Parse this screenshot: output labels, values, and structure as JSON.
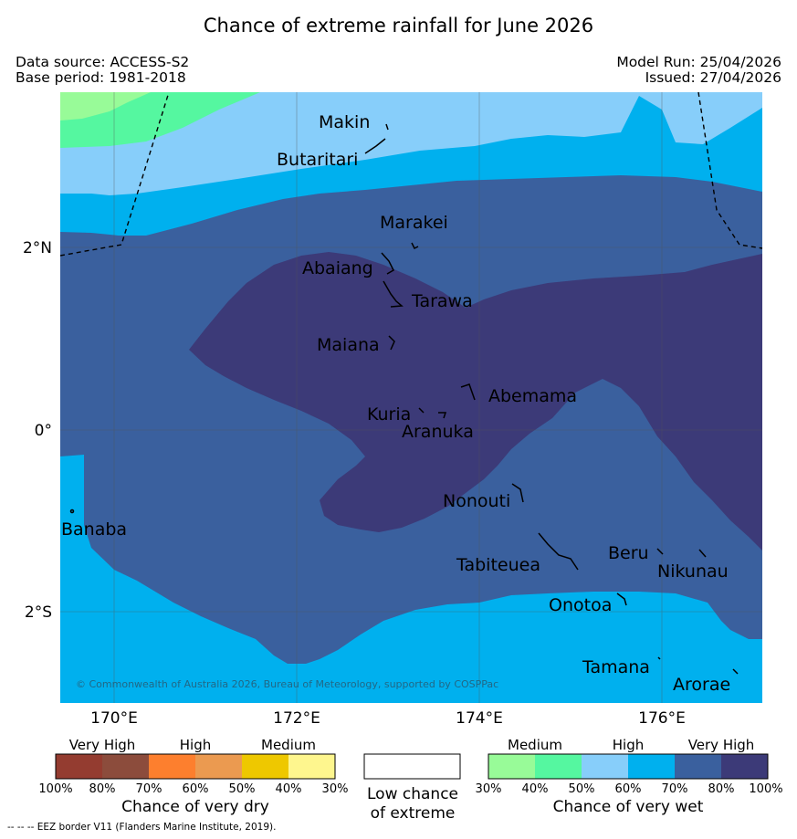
{
  "title": "Chance of extreme rainfall for June 2026",
  "meta": {
    "data_source": "Data source: ACCESS-S2",
    "base_period": "Base period: 1981-2018",
    "model_run": "Model Run: 25/04/2026",
    "issued": "Issued: 27/04/2026"
  },
  "map": {
    "region": "Kiribati (Gilbert Islands)",
    "lon_labels": [
      "170°E",
      "172°E",
      "174°E",
      "176°E"
    ],
    "lat_labels": [
      "2°N",
      "0°",
      "2°S"
    ],
    "places": {
      "makin": "Makin",
      "butaritari": "Butaritari",
      "marakei": "Marakei",
      "abaiang": "Abaiang",
      "tarawa": "Tarawa",
      "maiana": "Maiana",
      "abemama": "Abemama",
      "kuria": "Kuria",
      "aranuka": "Aranuka",
      "nonouti": "Nonouti",
      "banaba": "Banaba",
      "tabiteuea": "Tabiteuea",
      "beru": "Beru",
      "nikunau": "Nikunau",
      "onotoa": "Onotoa",
      "tamana": "Tamana",
      "arorae": "Arorae"
    },
    "copyright": "© Commonwealth of Australia 2026, Bureau of Meteorology, supported by COSPPac",
    "colors": {
      "wet_30_40": "#98fb98",
      "wet_40_50": "#55f7a0",
      "wet_50_60": "#87cefa",
      "wet_60_70": "#00b0ee",
      "wet_70_80": "#3a609e",
      "wet_80_100": "#3c3a78"
    }
  },
  "legend": {
    "dry": {
      "headers": [
        "Very High",
        "High",
        "Medium"
      ],
      "ticks": [
        "100%",
        "80%",
        "70%",
        "60%",
        "50%",
        "40%",
        "30%"
      ],
      "colors": [
        "#943c30",
        "#8c4c3c",
        "#fd7f2e",
        "#eb9a50",
        "#eec800",
        "#fef68e"
      ],
      "caption": "Chance of very dry"
    },
    "neutral": {
      "caption_line1": "Low chance",
      "caption_line2": "of extreme"
    },
    "wet": {
      "headers": [
        "Medium",
        "High",
        "Very High"
      ],
      "ticks": [
        "30%",
        "40%",
        "50%",
        "60%",
        "70%",
        "80%",
        "100%"
      ],
      "colors": [
        "#98fb98",
        "#55f7a0",
        "#87cefa",
        "#00b0ee",
        "#3a609e",
        "#3c3a78"
      ],
      "caption": "Chance of very wet"
    }
  },
  "footer": "--  --  -- EEZ border V11 (Flanders Marine Institute, 2019)."
}
